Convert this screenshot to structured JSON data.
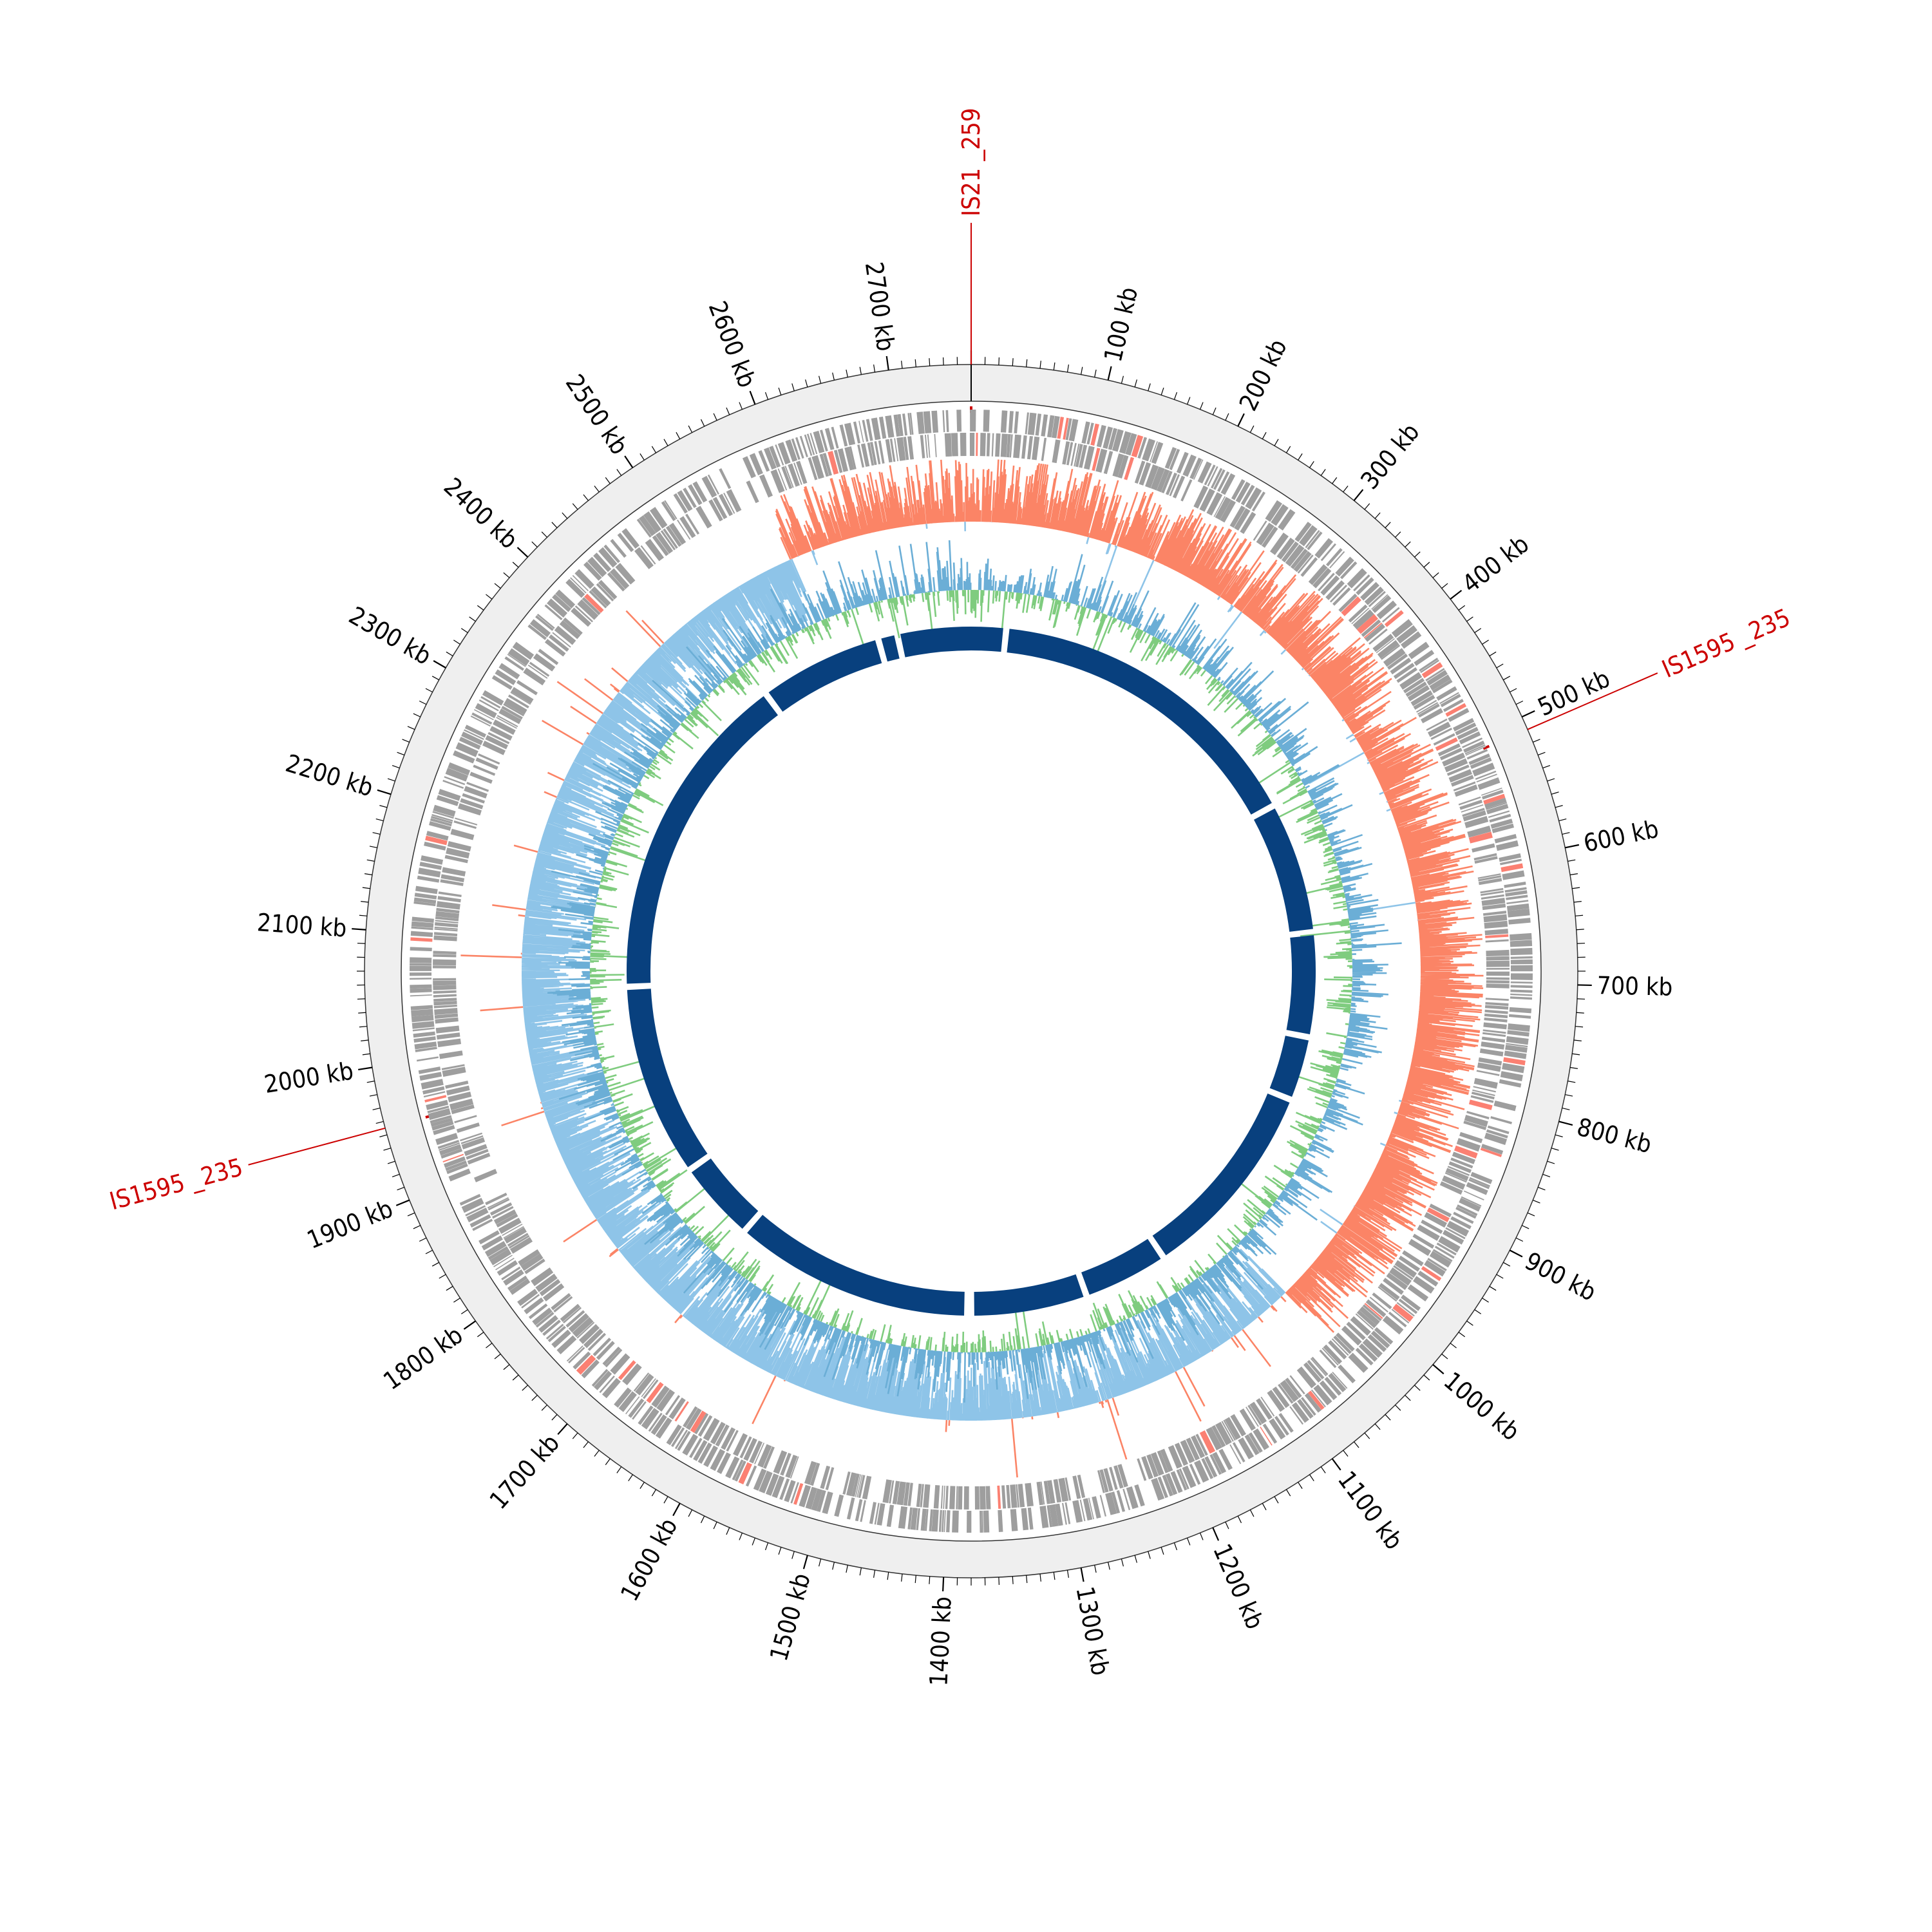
{
  "genome": {
    "length_kb": 2760,
    "tick_major_step_kb": 100,
    "tick_minor_step_kb": 10,
    "tick_labels": [
      "100 kb",
      "200 kb",
      "300 kb",
      "400 kb",
      "500 kb",
      "600 kb",
      "700 kb",
      "800 kb",
      "900 kb",
      "1000 kb",
      "1100 kb",
      "1200 kb",
      "1300 kb",
      "1400 kb",
      "1500 kb",
      "1600 kb",
      "1700 kb",
      "1800 kb",
      "1900 kb",
      "2000 kb",
      "2100 kb",
      "2200 kb",
      "2300 kb",
      "2400 kb",
      "2500 kb",
      "2600 kb",
      "2700 kb"
    ]
  },
  "insertion_sequences": [
    {
      "label": "IS21 _259",
      "position_kb": 0
    },
    {
      "label": "IS1595 _235",
      "position_kb": 510
    },
    {
      "label": "IS1595 _235",
      "position_kb": 1955
    }
  ],
  "colors": {
    "outer_ring": "#efefef",
    "genes": "#9e9e9e",
    "genes_highlight": "#fb8072",
    "gc_skew_positive": "#fb8466",
    "gc_skew_negative": "#8ec4e8",
    "gc_content_positive": "#6baed6",
    "gc_content_negative": "#7fcc7f",
    "contigs": "#08407e",
    "is_marker": "#cc0000"
  },
  "contig_gaps_kb": [
    45,
    470,
    640,
    775,
    858,
    1120,
    1230,
    1380,
    1385,
    1695,
    1800,
    2050,
    2480,
    2640,
    2665
  ]
}
